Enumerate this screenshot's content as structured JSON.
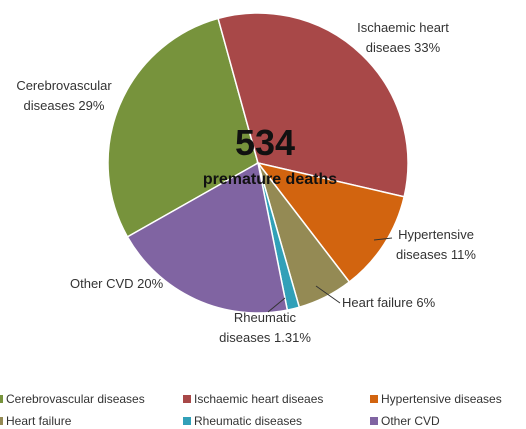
{
  "chart_data": {
    "type": "pie",
    "center_value": 534,
    "center_label": "premature deaths",
    "categories": [
      "Cerebrovascular diseases",
      "Ischaemic heart diseaes",
      "Hypertensive diseases",
      "Heart failure",
      "Rheumatic diseases",
      "Other CVD"
    ],
    "values": [
      29,
      33,
      11,
      6,
      1.31,
      20
    ],
    "value_labels": [
      "Cerebrovascular diseases 29%",
      "Ischaemic heart diseaes 33%",
      "Hypertensive diseases 11%",
      "Heart failure 6%",
      "Rheumatic diseases 1.31%",
      "Other CVD 20%"
    ],
    "colors": [
      "#77933c",
      "#a84848",
      "#d2640f",
      "#948a54",
      "#31a0b8",
      "#8064a2"
    ],
    "legend_position": "bottom"
  }
}
